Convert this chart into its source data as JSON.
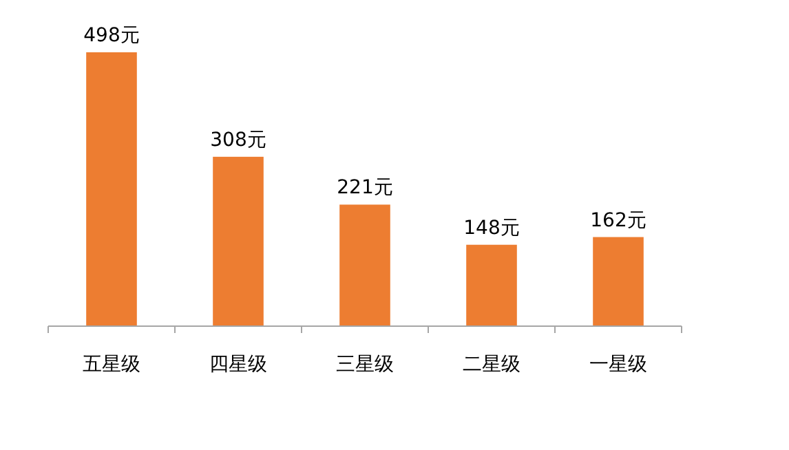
{
  "chart_data": {
    "type": "bar",
    "categories": [
      "五星级",
      "四星级",
      "三星级",
      "二星级",
      "一星级"
    ],
    "values": [
      498,
      308,
      221,
      148,
      162
    ],
    "value_labels": [
      "498元",
      "308元",
      "221元",
      "148元",
      "162元"
    ],
    "color": "#ed7d31"
  }
}
